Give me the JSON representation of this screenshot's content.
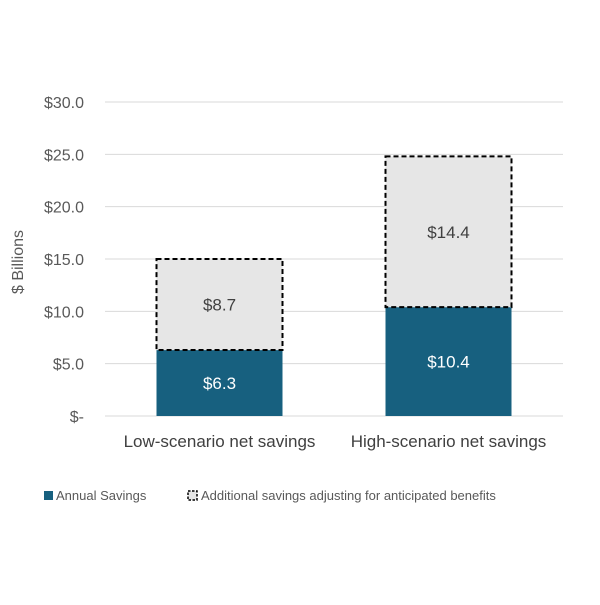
{
  "chart_data": {
    "type": "bar",
    "stacked": true,
    "categories": [
      "Low-scenario net savings",
      "High-scenario net savings"
    ],
    "series": [
      {
        "name": "Annual Savings",
        "values": [
          6.3,
          10.4
        ],
        "labels": [
          "$6.3",
          "$10.4"
        ],
        "color": "#17607F",
        "style": "solid"
      },
      {
        "name": "Additional savings adjusting for anticipated benefits",
        "values": [
          8.7,
          14.4
        ],
        "labels": [
          "$8.7",
          "$14.4"
        ],
        "color": "#E6E6E6",
        "style": "dashed-outline"
      }
    ],
    "ylabel": "$ Billions",
    "ylim": [
      0,
      30
    ],
    "yticks": [
      0,
      5,
      10,
      15,
      20,
      25,
      30
    ],
    "ytick_labels": [
      "$-",
      "$5.0",
      "$10.0",
      "$15.0",
      "$20.0",
      "$25.0",
      "$30.0"
    ],
    "grid": true,
    "legend_position": "bottom"
  }
}
